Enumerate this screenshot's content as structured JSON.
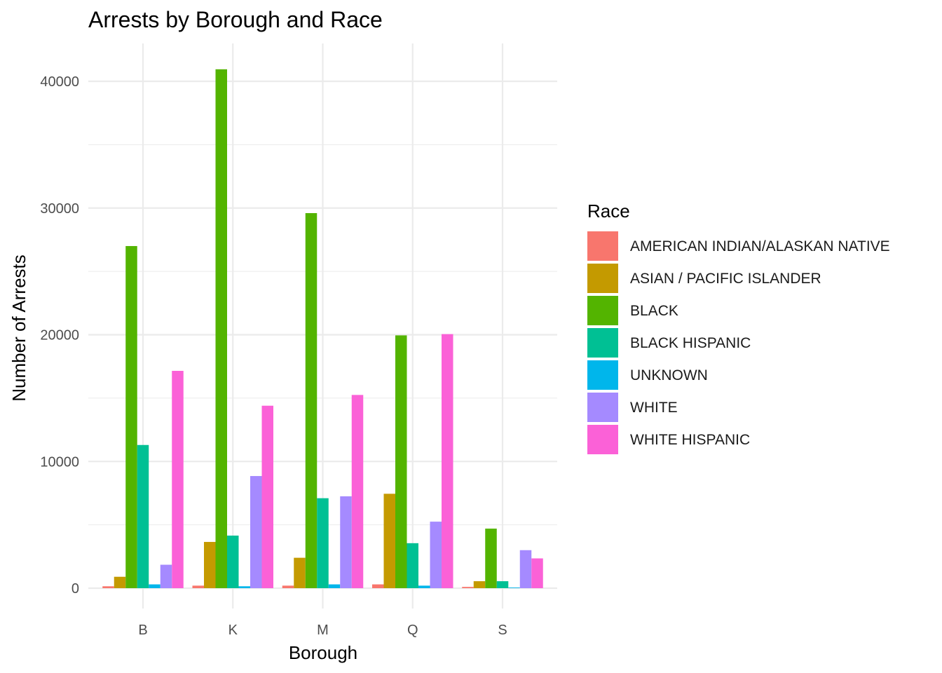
{
  "chart_data": {
    "type": "bar",
    "title": "Arrests by Borough and Race",
    "xlabel": "Borough",
    "ylabel": "Number of Arrests",
    "categories": [
      "B",
      "K",
      "M",
      "Q",
      "S"
    ],
    "ylim": [
      0,
      43000
    ],
    "yticks": [
      0,
      10000,
      20000,
      30000,
      40000
    ],
    "grid": true,
    "legend": {
      "title": "Race",
      "position": "right"
    },
    "series": [
      {
        "name": "AMERICAN INDIAN/ALASKAN NATIVE",
        "color": "#F8766D",
        "values": [
          150,
          200,
          200,
          300,
          100
        ]
      },
      {
        "name": "ASIAN / PACIFIC ISLANDER",
        "color": "#C49A00",
        "values": [
          900,
          3650,
          2400,
          7450,
          550
        ]
      },
      {
        "name": "BLACK",
        "color": "#53B400",
        "values": [
          27000,
          40950,
          29600,
          19950,
          4700
        ]
      },
      {
        "name": "BLACK HISPANIC",
        "color": "#00C094",
        "values": [
          11300,
          4150,
          7100,
          3550,
          550
        ]
      },
      {
        "name": "UNKNOWN",
        "color": "#00B6EB",
        "values": [
          300,
          150,
          300,
          200,
          50
        ]
      },
      {
        "name": "WHITE",
        "color": "#A58AFF",
        "values": [
          1850,
          8850,
          7250,
          5250,
          3000
        ]
      },
      {
        "name": "WHITE HISPANIC",
        "color": "#FB61D7",
        "values": [
          17150,
          14400,
          15250,
          20050,
          2350
        ]
      }
    ]
  }
}
